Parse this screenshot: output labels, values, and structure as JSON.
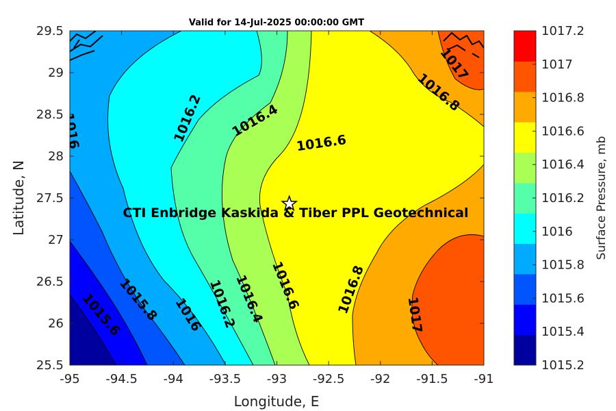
{
  "chart_data": {
    "type": "contour_map",
    "title": "Valid for 14-Jul-2025 00:00:00 GMT",
    "xlabel": "Longitude, E",
    "ylabel": "Latitude, N",
    "xlim": [
      -95,
      -91
    ],
    "ylim": [
      25.5,
      29.5
    ],
    "xticks": [
      "-95",
      "-94.5",
      "-94",
      "-93.5",
      "-93",
      "-92.5",
      "-92",
      "-91.5",
      "-91"
    ],
    "yticks": [
      "29.5",
      "29",
      "28.5",
      "28",
      "27.5",
      "27",
      "26.5",
      "26",
      "25.5"
    ],
    "colorbar": {
      "label": "Surface Pressure, mb",
      "levels": [
        1015.2,
        1015.4,
        1015.6,
        1015.8,
        1016,
        1016.2,
        1016.4,
        1016.6,
        1016.8,
        1017,
        1017.2
      ],
      "tick_labels": [
        "1017.2",
        "1017",
        "1016.8",
        "1016.6",
        "1016.4",
        "1016.2",
        "1016",
        "1015.8",
        "1015.6",
        "1015.4",
        "1015.2"
      ],
      "colors": [
        "#00009f",
        "#0000ff",
        "#0055ff",
        "#00aaff",
        "#00ffff",
        "#55ffaa",
        "#aaff55",
        "#ffff00",
        "#ffaa00",
        "#ff5500",
        "#ff0000"
      ]
    },
    "contour_labels": [
      {
        "text": "1015.6",
        "lon": -94.7,
        "lat": 26.1
      },
      {
        "text": "1015.8",
        "lon": -94.34,
        "lat": 26.28
      },
      {
        "text": "1016",
        "lon": -93.86,
        "lat": 26.1
      },
      {
        "text": "1016",
        "lon": -94.99,
        "lat": 28.3
      },
      {
        "text": "1016.2",
        "lon": -93.53,
        "lat": 26.23
      },
      {
        "text": "1016.2",
        "lon": -93.86,
        "lat": 28.45
      },
      {
        "text": "1016.4",
        "lon": -93.27,
        "lat": 26.29
      },
      {
        "text": "1016.4",
        "lon": -93.21,
        "lat": 28.42
      },
      {
        "text": "1016.6",
        "lon": -92.92,
        "lat": 26.45
      },
      {
        "text": "1016.6",
        "lon": -92.57,
        "lat": 28.15
      },
      {
        "text": "1016.8",
        "lon": -92.28,
        "lat": 26.4
      },
      {
        "text": "1016.8",
        "lon": -91.44,
        "lat": 28.76
      },
      {
        "text": "1017",
        "lon": -91.67,
        "lat": 26.1
      },
      {
        "text": "1017",
        "lon": -91.29,
        "lat": 29.1
      }
    ],
    "marker": {
      "symbol": "star",
      "lon": -92.88,
      "lat": 27.43
    },
    "annotation": "CTI Enbridge  Kaskida & Tiber PPL Geotechnical"
  }
}
